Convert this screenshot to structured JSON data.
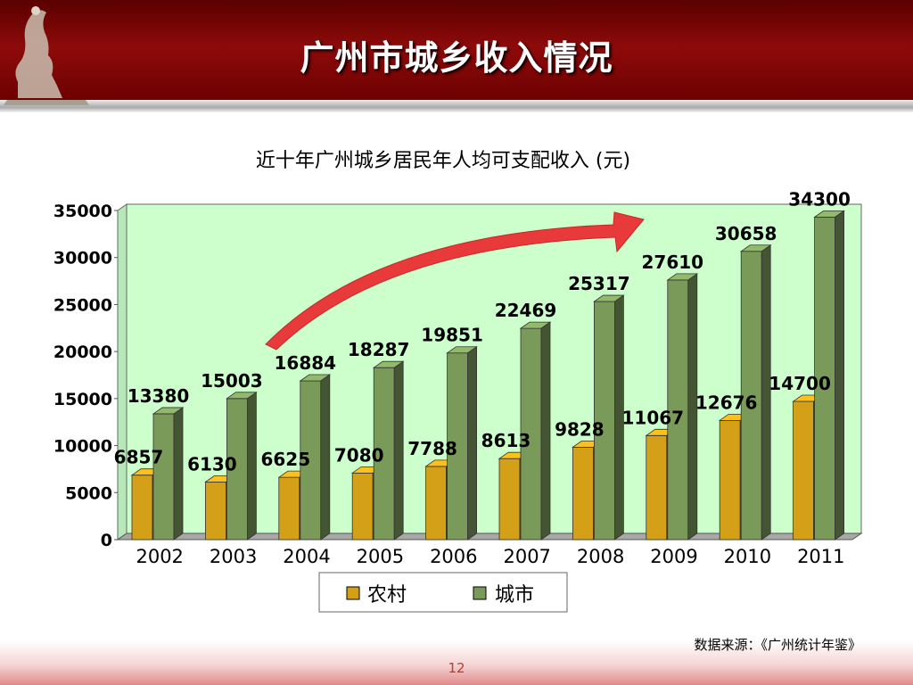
{
  "slide": {
    "title": "广州市城乡收入情况",
    "source": "数据来源：《广州统计年鉴》",
    "page_number": "12"
  },
  "colors": {
    "header": "#8e0a0a",
    "plot_background": "#ccffcc",
    "rural_bar": "#d4a017",
    "urban_bar": "#7a9a5a",
    "arrow": "#e83a3a"
  },
  "chart_data": {
    "type": "bar",
    "title": "近十年广州城乡居民年人均可支配收入 (元)",
    "categories": [
      "2002",
      "2003",
      "2004",
      "2005",
      "2006",
      "2007",
      "2008",
      "2009",
      "2010",
      "2011"
    ],
    "series": [
      {
        "name": "农村",
        "values": [
          6857,
          6130,
          6625,
          7080,
          7788,
          8613,
          9828,
          11067,
          12676,
          14700
        ]
      },
      {
        "name": "城市",
        "values": [
          13380,
          15003,
          16884,
          18287,
          19851,
          22469,
          25317,
          27610,
          30658,
          34300
        ]
      }
    ],
    "y_ticks": [
      "0",
      "5000",
      "10000",
      "15000",
      "20000",
      "25000",
      "30000",
      "35000"
    ],
    "ylim": [
      0,
      35000
    ],
    "grid": false,
    "legend_position": "bottom",
    "data_labels": true,
    "annotation": "rising-arrow"
  }
}
